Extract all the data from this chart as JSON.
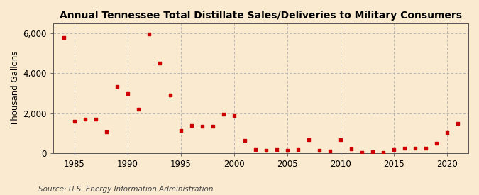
{
  "title": "Annual Tennessee Total Distillate Sales/Deliveries to Military Consumers",
  "ylabel": "Thousand Gallons",
  "source": "Source: U.S. Energy Information Administration",
  "background_color": "#faebd0",
  "marker_color": "#cc0000",
  "years": [
    1984,
    1985,
    1986,
    1987,
    1988,
    1989,
    1990,
    1991,
    1992,
    1993,
    1994,
    1995,
    1996,
    1997,
    1998,
    1999,
    2000,
    2001,
    2002,
    2003,
    2004,
    2005,
    2006,
    2007,
    2008,
    2009,
    2010,
    2011,
    2012,
    2013,
    2014,
    2015,
    2016,
    2017,
    2018,
    2019,
    2020,
    2021
  ],
  "values": [
    5800,
    1580,
    1700,
    1700,
    1080,
    3350,
    2980,
    2200,
    5980,
    4500,
    2900,
    1150,
    1390,
    1360,
    1360,
    1960,
    1880,
    640,
    180,
    140,
    190,
    140,
    190,
    680,
    140,
    90,
    680,
    200,
    50,
    55,
    50,
    190,
    230,
    230,
    230,
    480,
    1020,
    1480
  ],
  "xlim": [
    1983,
    2022
  ],
  "ylim": [
    0,
    6500
  ],
  "yticks": [
    0,
    2000,
    4000,
    6000
  ],
  "xticks": [
    1985,
    1990,
    1995,
    2000,
    2005,
    2010,
    2015,
    2020
  ],
  "title_fontsize": 10,
  "label_fontsize": 8.5,
  "tick_fontsize": 8.5,
  "source_fontsize": 7.5
}
